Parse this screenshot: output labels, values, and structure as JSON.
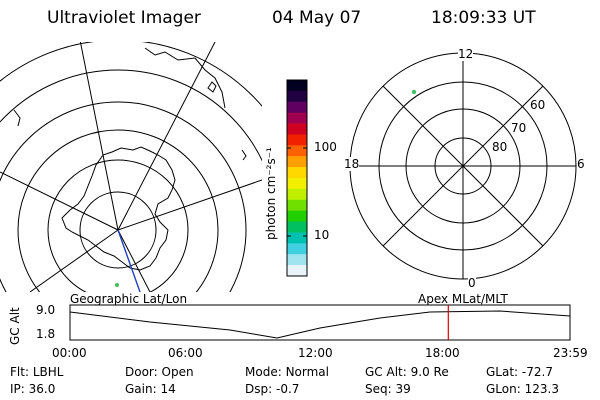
{
  "header": {
    "title": "Ultraviolet Imager",
    "date": "04 May 07",
    "time": "18:09:33 UT"
  },
  "colorbar": {
    "label": "photon cm⁻²s⁻¹",
    "ticks": [
      "100",
      "10"
    ],
    "scale": "log",
    "colors": [
      "#000020",
      "#200040",
      "#600060",
      "#a00050",
      "#d00020",
      "#f02000",
      "#ff6000",
      "#ffa000",
      "#ffd800",
      "#f0f000",
      "#c0f000",
      "#70e000",
      "#20d000",
      "#00c060",
      "#00c0b0",
      "#40d0e0",
      "#a0e4f0",
      "#e8f4f8"
    ]
  },
  "geo_panel": {
    "caption": "Geographic Lat/Lon"
  },
  "mag_panel": {
    "caption": "Apex MLat/MLT",
    "mlt_labels": {
      "top": "12",
      "left": "18",
      "right": "6",
      "bottom": "0"
    },
    "lat_labels": [
      "60",
      "70",
      "80"
    ]
  },
  "timeline": {
    "ylabel": "GC Alt",
    "yticks": [
      "9.0",
      "1.8"
    ],
    "xticks": [
      "00:00",
      "06:00",
      "12:00",
      "18:00",
      "23:59"
    ],
    "current_time_hours": 18.16,
    "marker_color": "#e00000"
  },
  "info": {
    "flt": {
      "label": "Flt:",
      "value": "LBHL"
    },
    "door": {
      "label": "Door:",
      "value": "Open"
    },
    "mode": {
      "label": "Mode:",
      "value": "Normal"
    },
    "gcalt": {
      "label": "GC Alt:",
      "value": "9.0 Re"
    },
    "glat": {
      "label": "GLat:",
      "value": "-72.7"
    },
    "ip": {
      "label": "IP:",
      "value": "36.0"
    },
    "gain": {
      "label": "Gain:",
      "value": "14"
    },
    "dsp": {
      "label": "Dsp:",
      "value": "-0.7"
    },
    "seq": {
      "label": "Seq:",
      "value": "39"
    },
    "glon": {
      "label": "GLon:",
      "value": "123.3"
    }
  }
}
